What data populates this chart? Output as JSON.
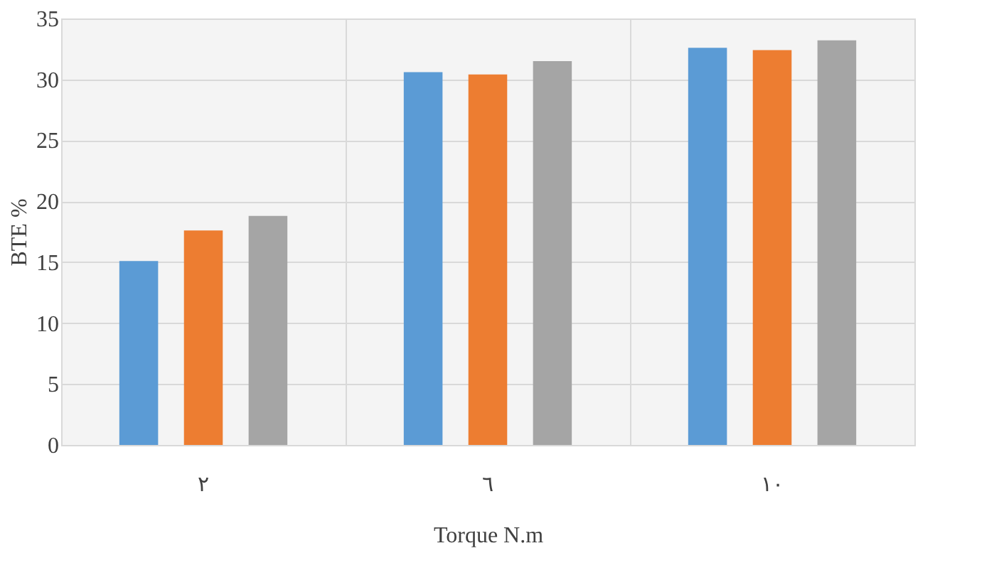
{
  "chart_data": {
    "type": "bar",
    "xlabel": "Torque N.m",
    "ylabel": "BTE %",
    "categories": [
      "٢",
      "٦",
      "١٠"
    ],
    "series": [
      {
        "color": "#5b9bd5",
        "values": [
          15.1,
          30.6,
          32.6
        ]
      },
      {
        "color": "#ed7d31",
        "values": [
          17.6,
          30.4,
          32.4
        ]
      },
      {
        "color": "#a5a5a5",
        "values": [
          18.8,
          31.5,
          33.2
        ]
      }
    ],
    "ylim": [
      0,
      35
    ],
    "yticks": [
      0,
      5,
      10,
      15,
      20,
      25,
      30,
      35
    ],
    "grid": true
  }
}
